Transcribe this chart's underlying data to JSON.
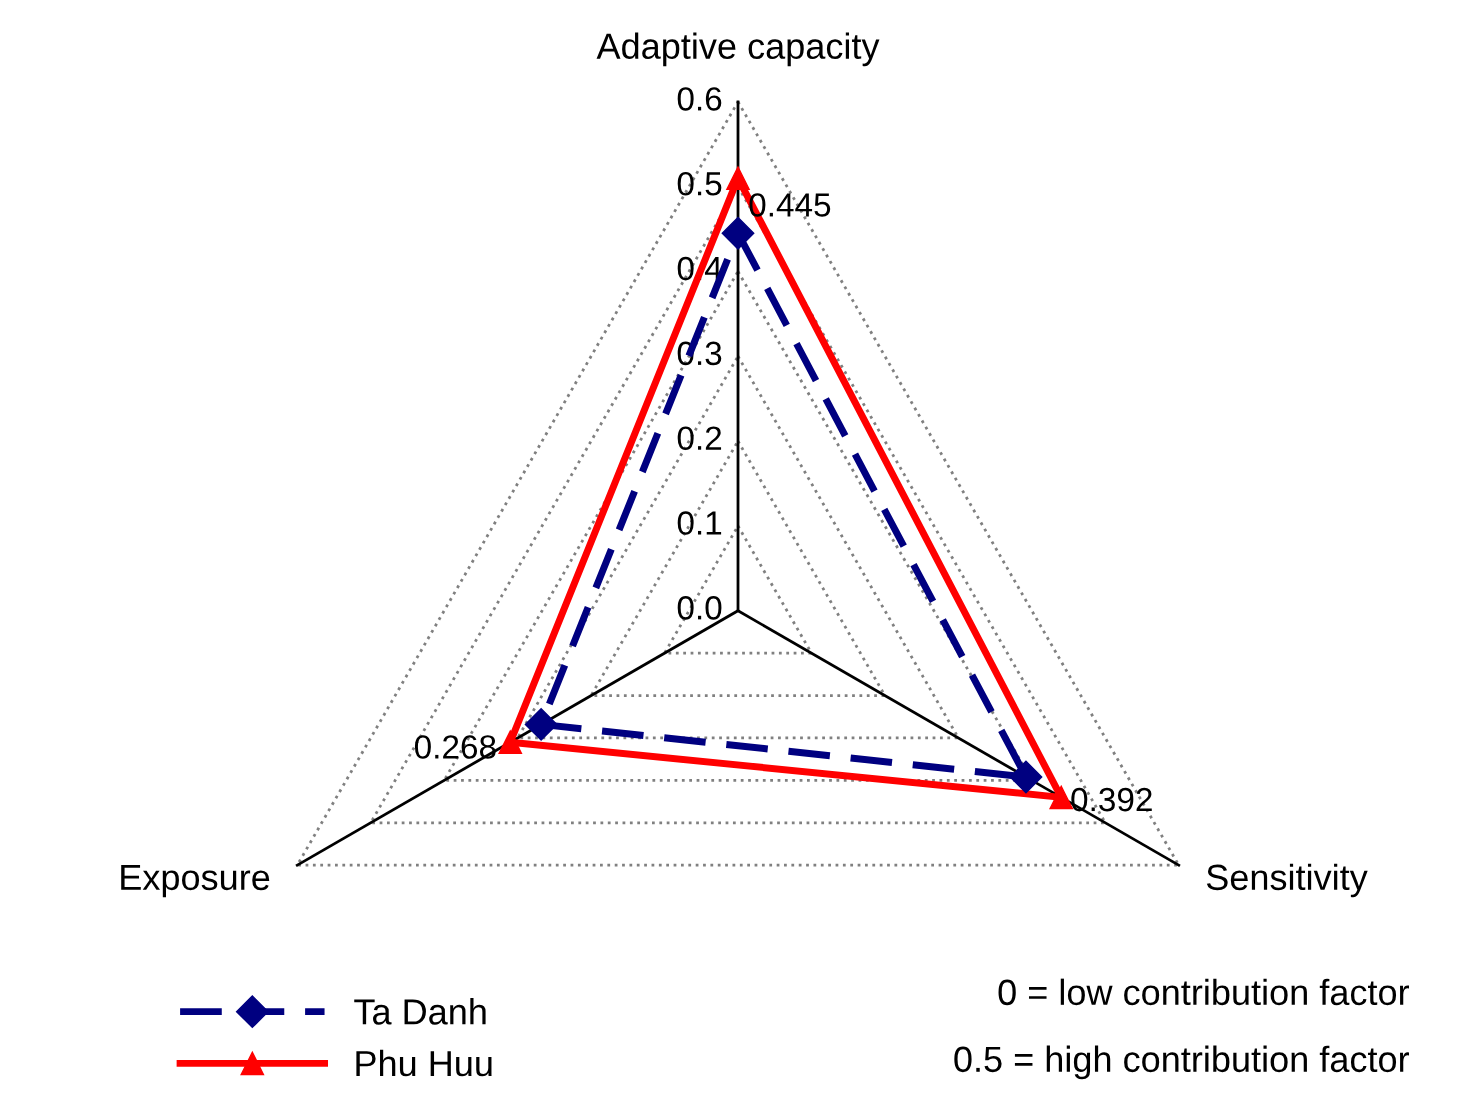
{
  "chart_data": {
    "type": "radar",
    "categories": [
      "Adaptive capacity",
      "Sensitivity",
      "Exposure"
    ],
    "series": [
      {
        "name": "Ta Danh",
        "color": "#000080",
        "values": [
          0.445,
          0.392,
          0.268
        ],
        "value_labels": [
          "0.445",
          "0.392",
          "0.268"
        ],
        "marker": "diamond",
        "line_style": "dashed"
      },
      {
        "name": "Phu Huu",
        "color": "#ff0000",
        "values": [
          0.51,
          0.44,
          0.31
        ],
        "marker": "triangle",
        "line_style": "solid"
      }
    ],
    "ylim": [
      0,
      0.6
    ],
    "yticks": [
      {
        "value": 0,
        "label": "0.0"
      },
      0.1,
      0.2,
      0.3,
      0.4,
      0.5,
      0.6
    ],
    "grid": true,
    "legend": "bottom",
    "annotations": [
      "0 = low contribution factor",
      "0.5 = high contribution factor"
    ]
  }
}
